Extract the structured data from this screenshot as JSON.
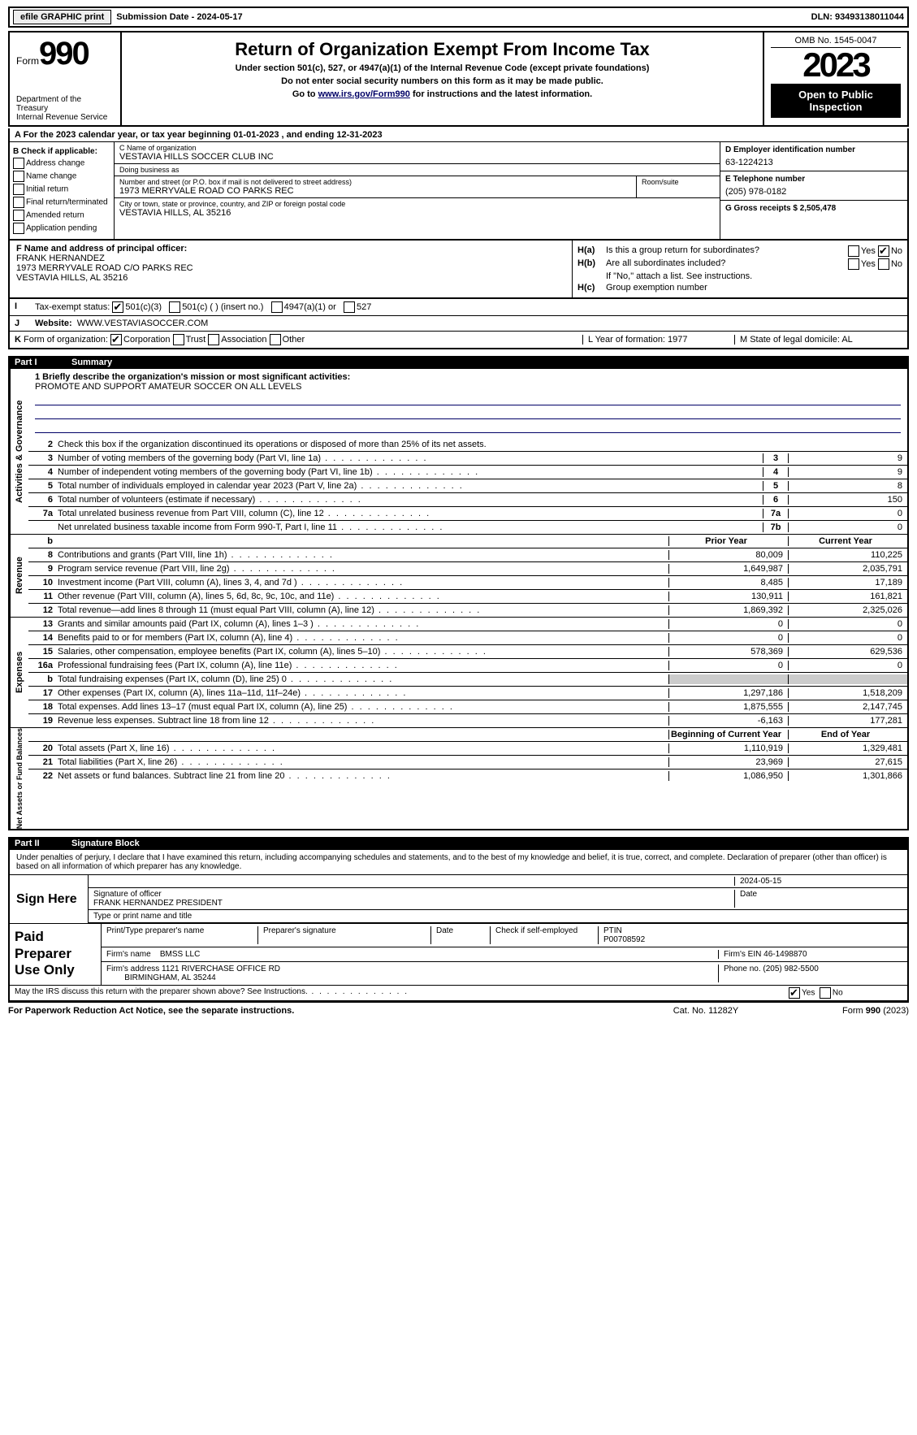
{
  "topbar": {
    "efile": "efile GRAPHIC print",
    "sub": "Submission Date - 2024-05-17",
    "dln": "DLN: 93493138011044"
  },
  "header": {
    "form_prefix": "Form",
    "form_num": "990",
    "dept": "Department of the Treasury\nInternal Revenue Service",
    "title": "Return of Organization Exempt From Income Tax",
    "sub1": "Under section 501(c), 527, or 4947(a)(1) of the Internal Revenue Code (except private foundations)",
    "sub2": "Do not enter social security numbers on this form as it may be made public.",
    "sub3_pre": "Go to ",
    "sub3_link": "www.irs.gov/Form990",
    "sub3_post": " for instructions and the latest information.",
    "omb": "OMB No. 1545-0047",
    "year": "2023",
    "openpub": "Open to Public Inspection"
  },
  "A": {
    "text": "A For the 2023 calendar year, or tax year beginning 01-01-2023   , and ending 12-31-2023"
  },
  "B": {
    "hdr": "B Check if applicable:",
    "items": [
      "Address change",
      "Name change",
      "Initial return",
      "Final return/terminated",
      "Amended return",
      "Application pending"
    ]
  },
  "C": {
    "name_lbl": "C Name of organization",
    "name": "VESTAVIA HILLS SOCCER CLUB INC",
    "dba_lbl": "Doing business as",
    "dba": "",
    "ns_lbl": "Number and street (or P.O. box if mail is not delivered to street address)",
    "ns": "1973 MERRYVALE ROAD CO PARKS REC",
    "rs_lbl": "Room/suite",
    "rs": "",
    "city_lbl": "City or town, state or province, country, and ZIP or foreign postal code",
    "city": "VESTAVIA HILLS, AL  35216"
  },
  "D": {
    "lbl": "D Employer identification number",
    "val": "63-1224213"
  },
  "E": {
    "lbl": "E Telephone number",
    "val": "(205) 978-0182"
  },
  "G": {
    "lbl": "G Gross receipts $ 2,505,478"
  },
  "F": {
    "lbl": "F  Name and address of principal officer:",
    "name": "FRANK HERNANDEZ",
    "addr1": "1973 MERRYVALE ROAD C/O PARKS REC",
    "addr2": "VESTAVIA HILLS, AL  35216"
  },
  "H": {
    "a_lbl": "H(a)",
    "a_txt": "Is this a group return for subordinates?",
    "a_yes": "Yes",
    "a_no": "No",
    "a_checked": "no",
    "b_lbl": "H(b)",
    "b_txt": "Are all subordinates included?",
    "b_note": "If \"No,\" attach a list. See instructions.",
    "c_lbl": "H(c)",
    "c_txt": "Group exemption number"
  },
  "I": {
    "lbl": "I",
    "txt": "Tax-exempt status:",
    "opts": [
      "501(c)(3)",
      "501(c) (  ) (insert no.)",
      "4947(a)(1) or",
      "527"
    ],
    "checked": 0
  },
  "J": {
    "lbl": "J",
    "txt": "Website:",
    "val": "WWW.VESTAVIASOCCER.COM"
  },
  "K": {
    "lbl": "K",
    "txt": "Form of organization:",
    "opts": [
      "Corporation",
      "Trust",
      "Association",
      "Other"
    ],
    "checked": 0,
    "L": "L Year of formation: 1977",
    "M": "M State of legal domicile: AL"
  },
  "part1": {
    "pn": "Part I",
    "title": "Summary"
  },
  "sections": {
    "gov": {
      "side": "Activities & Governance",
      "mission_lbl": "1  Briefly describe the organization's mission or most significant activities:",
      "mission": "PROMOTE AND SUPPORT AMATEUR SOCCER ON ALL LEVELS",
      "l2": "Check this box if the organization discontinued its operations or disposed of more than 25% of its net assets.",
      "lines": [
        {
          "n": "3",
          "d": "Number of voting members of the governing body (Part VI, line 1a)",
          "box": "3",
          "v": "9"
        },
        {
          "n": "4",
          "d": "Number of independent voting members of the governing body (Part VI, line 1b)",
          "box": "4",
          "v": "9"
        },
        {
          "n": "5",
          "d": "Total number of individuals employed in calendar year 2023 (Part V, line 2a)",
          "box": "5",
          "v": "8"
        },
        {
          "n": "6",
          "d": "Total number of volunteers (estimate if necessary)",
          "box": "6",
          "v": "150"
        },
        {
          "n": "7a",
          "d": "Total unrelated business revenue from Part VIII, column (C), line 12",
          "box": "7a",
          "v": "0"
        },
        {
          "n": "",
          "d": "Net unrelated business taxable income from Form 990-T, Part I, line 11",
          "box": "7b",
          "v": "0"
        }
      ]
    },
    "rev": {
      "side": "Revenue",
      "hdr_b": "b",
      "hdr_prior": "Prior Year",
      "hdr_cur": "Current Year",
      "lines": [
        {
          "n": "8",
          "d": "Contributions and grants (Part VIII, line 1h)",
          "p": "80,009",
          "c": "110,225"
        },
        {
          "n": "9",
          "d": "Program service revenue (Part VIII, line 2g)",
          "p": "1,649,987",
          "c": "2,035,791"
        },
        {
          "n": "10",
          "d": "Investment income (Part VIII, column (A), lines 3, 4, and 7d )",
          "p": "8,485",
          "c": "17,189"
        },
        {
          "n": "11",
          "d": "Other revenue (Part VIII, column (A), lines 5, 6d, 8c, 9c, 10c, and 11e)",
          "p": "130,911",
          "c": "161,821"
        },
        {
          "n": "12",
          "d": "Total revenue—add lines 8 through 11 (must equal Part VIII, column (A), line 12)",
          "p": "1,869,392",
          "c": "2,325,026"
        }
      ]
    },
    "exp": {
      "side": "Expenses",
      "lines": [
        {
          "n": "13",
          "d": "Grants and similar amounts paid (Part IX, column (A), lines 1–3 )",
          "p": "0",
          "c": "0"
        },
        {
          "n": "14",
          "d": "Benefits paid to or for members (Part IX, column (A), line 4)",
          "p": "0",
          "c": "0"
        },
        {
          "n": "15",
          "d": "Salaries, other compensation, employee benefits (Part IX, column (A), lines 5–10)",
          "p": "578,369",
          "c": "629,536"
        },
        {
          "n": "16a",
          "d": "Professional fundraising fees (Part IX, column (A), line 11e)",
          "p": "0",
          "c": "0"
        },
        {
          "n": "b",
          "d": "Total fundraising expenses (Part IX, column (D), line 25) 0",
          "p": "",
          "c": "",
          "shade": true
        },
        {
          "n": "17",
          "d": "Other expenses (Part IX, column (A), lines 11a–11d, 11f–24e)",
          "p": "1,297,186",
          "c": "1,518,209"
        },
        {
          "n": "18",
          "d": "Total expenses. Add lines 13–17 (must equal Part IX, column (A), line 25)",
          "p": "1,875,555",
          "c": "2,147,745"
        },
        {
          "n": "19",
          "d": "Revenue less expenses. Subtract line 18 from line 12",
          "p": "-6,163",
          "c": "177,281"
        }
      ]
    },
    "net": {
      "side": "Net Assets or Fund Balances",
      "hdr_prior": "Beginning of Current Year",
      "hdr_cur": "End of Year",
      "lines": [
        {
          "n": "20",
          "d": "Total assets (Part X, line 16)",
          "p": "1,110,919",
          "c": "1,329,481"
        },
        {
          "n": "21",
          "d": "Total liabilities (Part X, line 26)",
          "p": "23,969",
          "c": "27,615"
        },
        {
          "n": "22",
          "d": "Net assets or fund balances. Subtract line 21 from line 20",
          "p": "1,086,950",
          "c": "1,301,866"
        }
      ]
    }
  },
  "part2": {
    "pn": "Part II",
    "title": "Signature Block"
  },
  "sig": {
    "decl": "Under penalties of perjury, I declare that I have examined this return, including accompanying schedules and statements, and to the best of my knowledge and belief, it is true, correct, and complete. Declaration of preparer (other than officer) is based on all information of which preparer has any knowledge.",
    "signhere": "Sign Here",
    "date": "2024-05-15",
    "sig_lbl": "Signature of officer",
    "date_lbl": "Date",
    "officer": "FRANK HERNANDEZ PRESIDENT",
    "type_lbl": "Type or print name and title",
    "paid": "Paid Preparer Use Only",
    "p_name_lbl": "Print/Type preparer's name",
    "p_sig_lbl": "Preparer's signature",
    "p_date_lbl": "Date",
    "p_check": "Check       if self-employed",
    "ptin_lbl": "PTIN",
    "ptin": "P00708592",
    "firm_lbl": "Firm's name",
    "firm": "BMSS LLC",
    "firm_ein_lbl": "Firm's EIN",
    "firm_ein": "46-1498870",
    "firm_addr_lbl": "Firm's address",
    "firm_addr": "1121 RIVERCHASE OFFICE RD",
    "firm_city": "BIRMINGHAM, AL  35244",
    "phone_lbl": "Phone no.",
    "phone": "(205) 982-5500",
    "may": "May the IRS discuss this return with the preparer shown above? See Instructions.",
    "yes": "Yes",
    "no": "No"
  },
  "footer": {
    "l": "For Paperwork Reduction Act Notice, see the separate instructions.",
    "c": "Cat. No. 11282Y",
    "r": "Form 990 (2023)"
  }
}
